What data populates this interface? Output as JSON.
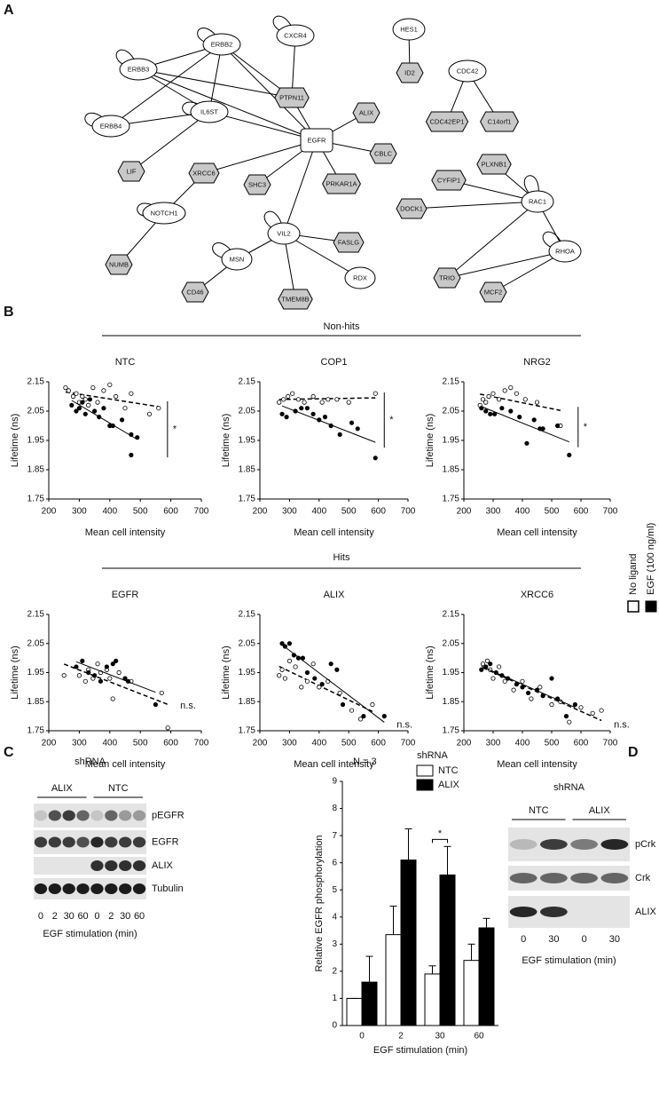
{
  "panel_labels": [
    "A",
    "B",
    "C",
    "D"
  ],
  "network": {
    "nodes": [
      {
        "label": "ERBB2",
        "shape": "ellipse"
      },
      {
        "label": "CXCR4",
        "shape": "ellipse"
      },
      {
        "label": "HES1",
        "shape": "ellipse"
      },
      {
        "label": "ERBB3",
        "shape": "ellipse"
      },
      {
        "label": "PTPN11",
        "shape": "hexagon"
      },
      {
        "label": "ID2",
        "shape": "hexagon"
      },
      {
        "label": "CDC42",
        "shape": "ellipse"
      },
      {
        "label": "IL6ST",
        "shape": "ellipse"
      },
      {
        "label": "ALIX",
        "shape": "hexagon"
      },
      {
        "label": "ERBB4",
        "shape": "ellipse"
      },
      {
        "label": "EGFR",
        "shape": "square"
      },
      {
        "label": "CDC42EP1",
        "shape": "hexagon"
      },
      {
        "label": "C14orf1",
        "shape": "hexagon"
      },
      {
        "label": "CBLC",
        "shape": "hexagon"
      },
      {
        "label": "LIF",
        "shape": "hexagon"
      },
      {
        "label": "XRCC6",
        "shape": "hexagon"
      },
      {
        "label": "PLXNB1",
        "shape": "hexagon"
      },
      {
        "label": "CYFIP1",
        "shape": "hexagon"
      },
      {
        "label": "SHC3",
        "shape": "hexagon"
      },
      {
        "label": "PRKAR1A",
        "shape": "hexagon"
      },
      {
        "label": "NOTCH1",
        "shape": "ellipse"
      },
      {
        "label": "DOCK1",
        "shape": "hexagon"
      },
      {
        "label": "RAC1",
        "shape": "ellipse"
      },
      {
        "label": "VIL2",
        "shape": "ellipse"
      },
      {
        "label": "FASLG",
        "shape": "hexagon"
      },
      {
        "label": "MSN",
        "shape": "ellipse"
      },
      {
        "label": "RHOA",
        "shape": "ellipse"
      },
      {
        "label": "NUMB",
        "shape": "hexagon"
      },
      {
        "label": "RDX",
        "shape": "ellipse"
      },
      {
        "label": "TRIO",
        "shape": "hexagon"
      },
      {
        "label": "CD46",
        "shape": "hexagon"
      },
      {
        "label": "TMEM8B",
        "shape": "hexagon"
      },
      {
        "label": "MCF2",
        "shape": "hexagon"
      }
    ]
  },
  "scatter_groups": [
    "Non-hits",
    "Hits"
  ],
  "legend": [
    "No ligand",
    "EGF (100 ng/ml)"
  ],
  "chart_data": [
    {
      "type": "scatter",
      "title": "NTC",
      "xlabel": "Mean cell intensity",
      "ylabel": "Lifetime (ns)",
      "xlim": [
        200,
        700
      ],
      "ylim": [
        1.75,
        2.15
      ],
      "xticks": [
        200,
        300,
        400,
        500,
        600,
        700
      ],
      "yticks": [
        1.75,
        1.85,
        1.95,
        2.05,
        2.15
      ],
      "annotation": "*",
      "series": [
        {
          "marker": "open",
          "x": [
            255,
            265,
            280,
            290,
            300,
            310,
            320,
            330,
            345,
            360,
            380,
            400,
            420,
            450,
            470,
            530,
            560
          ],
          "values": [
            2.13,
            2.12,
            2.1,
            2.11,
            2.08,
            2.1,
            2.09,
            2.07,
            2.13,
            2.08,
            2.12,
            2.14,
            2.1,
            2.06,
            2.11,
            2.04,
            2.06
          ]
        },
        {
          "marker": "filled",
          "x": [
            275,
            290,
            300,
            310,
            320,
            335,
            350,
            365,
            380,
            400,
            410,
            440,
            470,
            470,
            490
          ],
          "values": [
            2.07,
            2.05,
            2.06,
            2.08,
            2.04,
            2.09,
            2.05,
            2.03,
            2.06,
            2.0,
            2.0,
            2.02,
            1.97,
            1.9,
            1.96
          ]
        }
      ]
    },
    {
      "type": "scatter",
      "title": "COP1",
      "xlabel": "Mean cell intensity",
      "ylabel": "Lifetime (ns)",
      "xlim": [
        200,
        700
      ],
      "ylim": [
        1.75,
        2.15
      ],
      "xticks": [
        200,
        300,
        400,
        500,
        600,
        700
      ],
      "yticks": [
        1.75,
        1.85,
        1.95,
        2.05,
        2.15
      ],
      "annotation": "*",
      "series": [
        {
          "marker": "open",
          "x": [
            265,
            280,
            295,
            310,
            330,
            350,
            380,
            410,
            430,
            460,
            500,
            590
          ],
          "values": [
            2.08,
            2.09,
            2.1,
            2.11,
            2.09,
            2.08,
            2.1,
            2.08,
            2.09,
            2.09,
            2.08,
            2.11
          ]
        },
        {
          "marker": "filled",
          "x": [
            275,
            290,
            320,
            340,
            360,
            380,
            400,
            420,
            440,
            470,
            510,
            530,
            590
          ],
          "values": [
            2.04,
            2.03,
            2.05,
            2.06,
            2.06,
            2.04,
            2.02,
            2.03,
            2.0,
            1.97,
            2.01,
            1.99,
            1.89
          ]
        }
      ]
    },
    {
      "type": "scatter",
      "title": "NRG2",
      "xlabel": "Mean cell intensity",
      "ylabel": "Lifetime (ns)",
      "xlim": [
        200,
        700
      ],
      "ylim": [
        1.75,
        2.15
      ],
      "xticks": [
        200,
        300,
        400,
        500,
        600,
        700
      ],
      "yticks": [
        1.75,
        1.85,
        1.95,
        2.05,
        2.15
      ],
      "annotation": "*",
      "series": [
        {
          "marker": "open",
          "x": [
            255,
            265,
            275,
            285,
            300,
            320,
            340,
            360,
            380,
            410,
            450,
            530
          ],
          "values": [
            2.07,
            2.09,
            2.08,
            2.1,
            2.11,
            2.09,
            2.12,
            2.13,
            2.11,
            2.09,
            2.08,
            2.0
          ]
        },
        {
          "marker": "filled",
          "x": [
            260,
            275,
            290,
            305,
            330,
            360,
            390,
            415,
            440,
            460,
            470,
            520,
            560
          ],
          "values": [
            2.06,
            2.05,
            2.04,
            2.04,
            2.06,
            2.05,
            2.03,
            1.94,
            2.02,
            1.99,
            1.99,
            2.0,
            1.9
          ]
        }
      ]
    },
    {
      "type": "scatter",
      "title": "EGFR",
      "xlabel": "Mean cell intensity",
      "ylabel": "Lifetime (ns)",
      "xlim": [
        200,
        700
      ],
      "ylim": [
        1.75,
        2.15
      ],
      "xticks": [
        200,
        300,
        400,
        500,
        600,
        700
      ],
      "yticks": [
        1.75,
        1.85,
        1.95,
        2.05,
        2.15
      ],
      "annotation": "n.s.",
      "series": [
        {
          "marker": "open",
          "x": [
            250,
            300,
            320,
            330,
            345,
            360,
            370,
            390,
            400,
            410,
            430,
            470,
            570,
            590
          ],
          "values": [
            1.94,
            1.94,
            1.92,
            1.96,
            1.93,
            1.98,
            1.95,
            1.96,
            1.93,
            1.86,
            1.95,
            1.92,
            1.88,
            1.76
          ]
        },
        {
          "marker": "filled",
          "x": [
            290,
            310,
            330,
            350,
            370,
            390,
            410,
            420,
            450,
            460,
            550
          ],
          "values": [
            1.97,
            1.99,
            1.95,
            1.94,
            1.92,
            1.97,
            1.98,
            1.99,
            1.93,
            1.92,
            1.84
          ]
        }
      ]
    },
    {
      "type": "scatter",
      "title": "ALIX",
      "xlabel": "Mean cell intensity",
      "ylabel": "Lifetime (ns)",
      "xlim": [
        200,
        700
      ],
      "ylim": [
        1.75,
        2.15
      ],
      "xticks": [
        200,
        300,
        400,
        500,
        600,
        700
      ],
      "yticks": [
        1.75,
        1.85,
        1.95,
        2.05,
        2.15
      ],
      "annotation": "n.s.",
      "series": [
        {
          "marker": "open",
          "x": [
            265,
            275,
            285,
            300,
            320,
            340,
            360,
            380,
            400,
            430,
            470,
            510,
            540,
            580
          ],
          "values": [
            1.94,
            1.96,
            1.93,
            1.99,
            1.97,
            1.9,
            1.92,
            1.98,
            1.9,
            1.92,
            1.88,
            1.82,
            1.79,
            1.84
          ]
        },
        {
          "marker": "filled",
          "x": [
            275,
            285,
            300,
            315,
            330,
            345,
            360,
            385,
            410,
            440,
            460,
            480,
            550,
            620
          ],
          "values": [
            2.05,
            2.04,
            2.05,
            2.01,
            2.0,
            2.0,
            1.95,
            1.93,
            1.91,
            1.98,
            1.96,
            1.84,
            1.8,
            1.8
          ]
        }
      ]
    },
    {
      "type": "scatter",
      "title": "XRCC6",
      "xlabel": "Mean cell intensity",
      "ylabel": "Lifetime (ns)",
      "xlim": [
        200,
        700
      ],
      "ylim": [
        1.75,
        2.15
      ],
      "xticks": [
        200,
        300,
        400,
        500,
        600,
        700
      ],
      "yticks": [
        1.75,
        1.85,
        1.95,
        2.05,
        2.15
      ],
      "annotation": "n.s.",
      "series": [
        {
          "marker": "open",
          "x": [
            265,
            280,
            290,
            300,
            320,
            340,
            370,
            400,
            430,
            460,
            500,
            530,
            560,
            600,
            640,
            670
          ],
          "values": [
            1.98,
            1.99,
            1.96,
            1.93,
            1.97,
            1.92,
            1.89,
            1.92,
            1.86,
            1.9,
            1.84,
            1.85,
            1.78,
            1.83,
            1.81,
            1.82
          ]
        },
        {
          "marker": "filled",
          "x": [
            260,
            275,
            290,
            310,
            330,
            350,
            380,
            400,
            420,
            450,
            470,
            500,
            520,
            550,
            580
          ],
          "values": [
            1.96,
            1.97,
            1.98,
            1.95,
            1.94,
            1.93,
            1.91,
            1.9,
            1.88,
            1.89,
            1.87,
            1.93,
            1.86,
            1.8,
            1.84
          ]
        }
      ]
    },
    {
      "type": "bar",
      "note": "N = 3",
      "ylabel": "Relative EGFR phosphorylation",
      "xlabel": "EGF stimulation (min)",
      "legend_title": "shRNA",
      "annotation": "*",
      "categories": [
        "0",
        "2",
        "30",
        "60"
      ],
      "ylim": [
        0,
        9
      ],
      "yticks": [
        0,
        1,
        2,
        3,
        4,
        5,
        6,
        7,
        8,
        9
      ],
      "series": [
        {
          "name": "NTC",
          "color": "#ffffff",
          "values": [
            1,
            3.35,
            1.9,
            2.4
          ],
          "errors": [
            0,
            1.05,
            0.3,
            0.6
          ]
        },
        {
          "name": "ALIX",
          "color": "#000000",
          "values": [
            1.6,
            6.1,
            5.55,
            3.6
          ],
          "errors": [
            0.95,
            1.15,
            1.05,
            0.35
          ]
        }
      ]
    }
  ],
  "blot_c": {
    "header": "shRNA",
    "groups": [
      "ALIX",
      "NTC"
    ],
    "rows": [
      "pEGFR",
      "EGFR",
      "ALIX",
      "Tubulin"
    ],
    "lanes": [
      0,
      2,
      30,
      60,
      0,
      2,
      30,
      60
    ],
    "xlabel": "EGF stimulation (min)"
  },
  "blot_d": {
    "header": "shRNA",
    "groups": [
      "NTC",
      "ALIX"
    ],
    "rows": [
      "pCrk",
      "Crk",
      "ALIX"
    ],
    "lanes": [
      0,
      30,
      0,
      30
    ],
    "xlabel": "EGF stimulation (min)"
  }
}
